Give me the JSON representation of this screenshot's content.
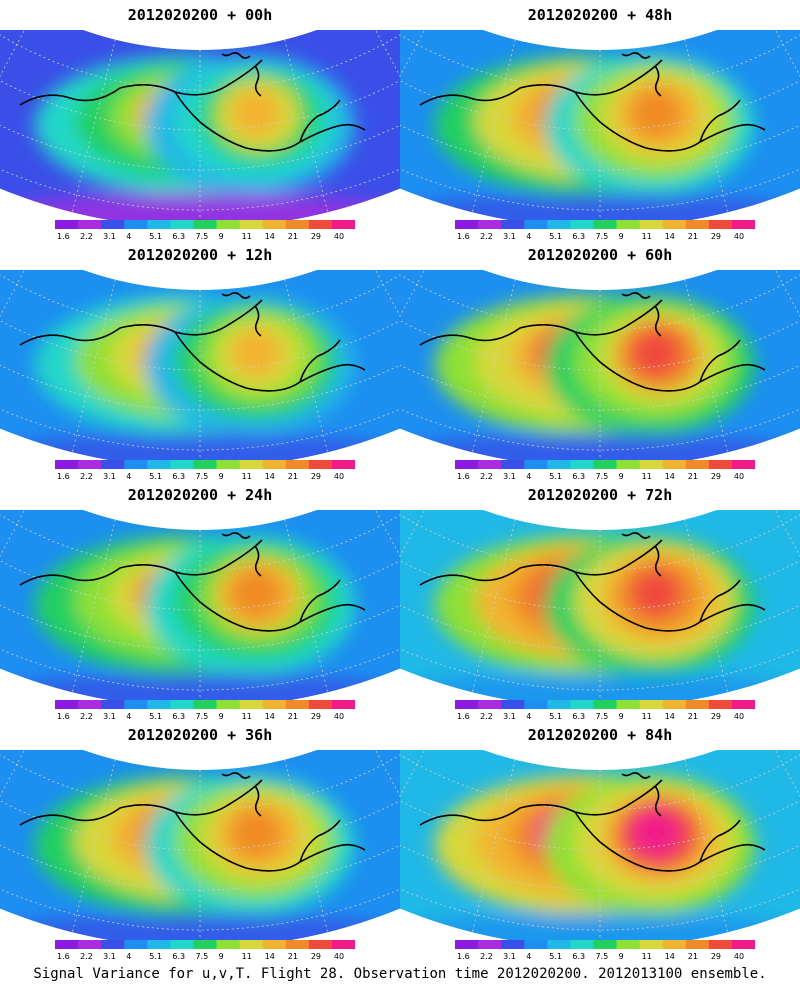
{
  "footer": "Signal Variance for u,v,T. Flight 28. Observation time 2012020200. 2012013100 ensemble.",
  "colors": {
    "scale": [
      "#8a1be0",
      "#a92ce0",
      "#3a4fe8",
      "#1c8ff0",
      "#20b8e6",
      "#22d7c8",
      "#22d060",
      "#8ee035",
      "#d7d83a",
      "#f2b430",
      "#f08a28",
      "#f04a3c",
      "#f21a8a"
    ],
    "coast": "#000000",
    "grid": "#cfcfcf"
  },
  "chart_data": [
    {
      "type": "heatmap",
      "title": "2012020200 + 00h",
      "colorbar_ticks": [
        "1.6",
        "2.2",
        "3.1",
        "4",
        "5.1",
        "6.3",
        "7.5",
        "9",
        "11",
        "14",
        "21",
        "29",
        "40"
      ],
      "intensity": 0.45
    },
    {
      "type": "heatmap",
      "title": "2012020200 + 48h",
      "colorbar_ticks": [
        "1.6",
        "2.2",
        "3.1",
        "4",
        "5.1",
        "6.3",
        "7.5",
        "9",
        "11",
        "14",
        "21",
        "29",
        "40"
      ],
      "intensity": 0.7
    },
    {
      "type": "heatmap",
      "title": "2012020200 + 12h",
      "colorbar_ticks": [
        "1.6",
        "2.2",
        "3.1",
        "4",
        "5.1",
        "6.3",
        "7.5",
        "9",
        "11",
        "14",
        "21",
        "29",
        "40"
      ],
      "intensity": 0.52
    },
    {
      "type": "heatmap",
      "title": "2012020200 + 60h",
      "colorbar_ticks": [
        "1.6",
        "2.2",
        "3.1",
        "4",
        "5.1",
        "6.3",
        "7.5",
        "9",
        "11",
        "14",
        "21",
        "29",
        "40"
      ],
      "intensity": 0.76
    },
    {
      "type": "heatmap",
      "title": "2012020200 + 24h",
      "colorbar_ticks": [
        "1.6",
        "2.2",
        "3.1",
        "4",
        "5.1",
        "6.3",
        "7.5",
        "9",
        "11",
        "14",
        "21",
        "29",
        "40"
      ],
      "intensity": 0.6
    },
    {
      "type": "heatmap",
      "title": "2012020200 + 72h",
      "colorbar_ticks": [
        "1.6",
        "2.2",
        "3.1",
        "4",
        "5.1",
        "6.3",
        "7.5",
        "9",
        "11",
        "14",
        "21",
        "29",
        "40"
      ],
      "intensity": 0.84
    },
    {
      "type": "heatmap",
      "title": "2012020200 + 36h",
      "colorbar_ticks": [
        "1.6",
        "2.2",
        "3.1",
        "4",
        "5.1",
        "6.3",
        "7.5",
        "9",
        "11",
        "14",
        "21",
        "29",
        "40"
      ],
      "intensity": 0.66
    },
    {
      "type": "heatmap",
      "title": "2012020200 + 84h",
      "colorbar_ticks": [
        "1.6",
        "2.2",
        "3.1",
        "4",
        "5.1",
        "6.3",
        "7.5",
        "9",
        "11",
        "14",
        "21",
        "29",
        "40"
      ],
      "intensity": 0.9
    }
  ]
}
